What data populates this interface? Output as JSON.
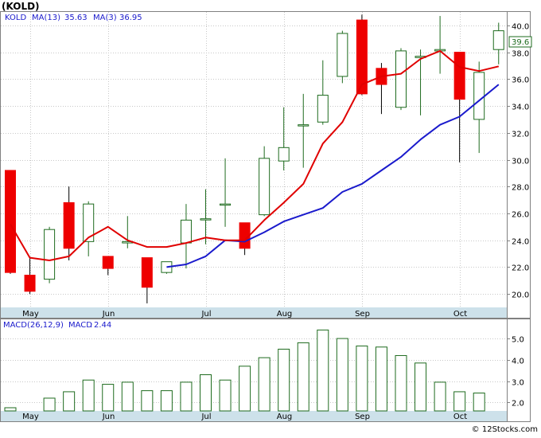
{
  "title": "(KOLD)",
  "price_legend": {
    "ticker": "KOLD",
    "ma13": "MA(13)",
    "ma13_value": "35.63",
    "ma3": "MA(3)",
    "ma3_value": "36.95"
  },
  "macd_legend": {
    "label": "MACD(26,12,9)",
    "name": "MACD",
    "value": "2.44"
  },
  "last_price_label": "39.6",
  "credit": "© 12Stocks.com",
  "colors": {
    "ma13": "#1a1acc",
    "ma3": "#e00000",
    "up_candle": "#1e6b1e",
    "down_candle": "#ee0000",
    "macd_bar": "#1e6b1e",
    "axis_bg": "#cde1ea"
  },
  "chart_data": [
    {
      "type": "candlestick",
      "title": "(KOLD)",
      "x_ticks": [
        "May",
        "Jun",
        "Jul",
        "Aug",
        "Sep",
        "Oct"
      ],
      "x_tick_index": [
        1,
        5,
        10,
        14,
        18,
        23
      ],
      "y_ticks": [
        20.0,
        22.0,
        24.0,
        26.0,
        28.0,
        30.0,
        32.0,
        34.0,
        36.0,
        38.0,
        40.0
      ],
      "ylim": [
        19.0,
        41.0
      ],
      "grid": true,
      "legend_placement": "top-left",
      "candles": [
        {
          "o": 29.2,
          "h": 29.2,
          "l": 21.5,
          "c": 21.6
        },
        {
          "o": 21.4,
          "h": 22.7,
          "l": 20.0,
          "c": 20.2
        },
        {
          "o": 21.1,
          "h": 25.0,
          "l": 20.8,
          "c": 24.8
        },
        {
          "o": 26.8,
          "h": 28.0,
          "l": 22.5,
          "c": 23.4
        },
        {
          "o": 23.9,
          "h": 26.9,
          "l": 22.8,
          "c": 26.7
        },
        {
          "o": 22.8,
          "h": 22.8,
          "l": 21.4,
          "c": 21.9
        },
        {
          "o": 23.8,
          "h": 25.8,
          "l": 23.4,
          "c": 23.9
        },
        {
          "o": 22.7,
          "h": 22.7,
          "l": 19.3,
          "c": 20.5
        },
        {
          "o": 21.6,
          "h": 22.4,
          "l": 21.5,
          "c": 22.4
        },
        {
          "o": 23.8,
          "h": 26.7,
          "l": 21.9,
          "c": 25.5
        },
        {
          "o": 25.6,
          "h": 27.8,
          "l": 23.7,
          "c": 25.6
        },
        {
          "o": 26.7,
          "h": 30.1,
          "l": 25.0,
          "c": 26.7
        },
        {
          "o": 25.3,
          "h": 25.3,
          "l": 22.9,
          "c": 23.4
        },
        {
          "o": 25.9,
          "h": 31.0,
          "l": 25.8,
          "c": 30.1
        },
        {
          "o": 29.9,
          "h": 33.9,
          "l": 29.2,
          "c": 30.9
        },
        {
          "o": 32.6,
          "h": 34.9,
          "l": 29.4,
          "c": 32.6
        },
        {
          "o": 32.8,
          "h": 37.4,
          "l": 32.6,
          "c": 34.8
        },
        {
          "o": 36.2,
          "h": 39.6,
          "l": 35.7,
          "c": 39.4
        },
        {
          "o": 40.4,
          "h": 40.8,
          "l": 34.8,
          "c": 34.9
        },
        {
          "o": 36.8,
          "h": 37.2,
          "l": 33.4,
          "c": 35.6
        },
        {
          "o": 33.9,
          "h": 38.3,
          "l": 33.7,
          "c": 38.1
        },
        {
          "o": 37.6,
          "h": 38.2,
          "l": 33.3,
          "c": 37.7
        },
        {
          "o": 38.1,
          "h": 40.7,
          "l": 36.4,
          "c": 38.2
        },
        {
          "o": 38.0,
          "h": 38.0,
          "l": 29.8,
          "c": 34.5
        },
        {
          "o": 33.0,
          "h": 37.3,
          "l": 30.5,
          "c": 36.5
        },
        {
          "o": 38.2,
          "h": 40.2,
          "l": 37.1,
          "c": 39.6
        }
      ],
      "series": [
        {
          "name": "MA(13)",
          "values": [
            null,
            null,
            null,
            null,
            null,
            null,
            null,
            null,
            22.0,
            22.2,
            22.8,
            24.0,
            23.9,
            24.6,
            25.4,
            25.9,
            26.4,
            27.6,
            28.2,
            29.2,
            30.2,
            31.5,
            32.6,
            33.2,
            34.4,
            35.6
          ]
        },
        {
          "name": "MA(3)",
          "values": [
            25.2,
            22.7,
            22.5,
            22.8,
            24.2,
            25.0,
            24.0,
            23.5,
            23.5,
            23.8,
            24.2,
            24.0,
            24.0,
            25.5,
            26.8,
            28.2,
            31.2,
            32.8,
            35.6,
            36.2,
            36.4,
            37.5,
            38.1,
            36.9,
            36.6,
            36.95
          ]
        }
      ]
    },
    {
      "type": "bar",
      "title": "MACD(26,12,9)",
      "x_ticks": [
        "May",
        "Jun",
        "Jul",
        "Aug",
        "Sep",
        "Oct"
      ],
      "y_ticks": [
        2.0,
        3.0,
        4.0,
        5.0
      ],
      "ylim": [
        1.6,
        5.9
      ],
      "grid": true,
      "series": [
        {
          "name": "MACD",
          "values": [
            1.75,
            1.6,
            2.2,
            2.5,
            3.05,
            2.85,
            2.95,
            2.55,
            2.55,
            2.95,
            3.3,
            3.05,
            3.7,
            4.1,
            4.5,
            4.8,
            5.4,
            5.0,
            4.65,
            4.6,
            4.2,
            3.85,
            2.95,
            2.5,
            2.44
          ]
        }
      ]
    }
  ]
}
